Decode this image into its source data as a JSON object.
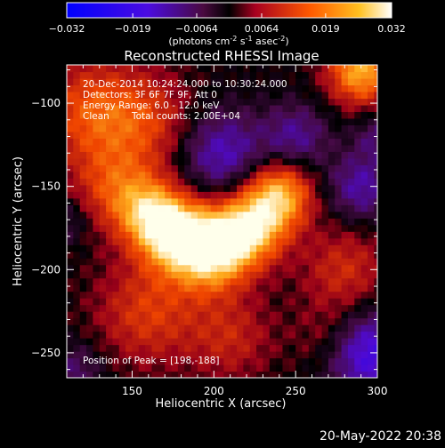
{
  "colorbar": {
    "ticks": [
      "-0.032",
      "-0.019",
      "-0.0064",
      "0.0064",
      "0.019",
      "0.032"
    ],
    "min": -0.032,
    "max": 0.032,
    "unit_parts": {
      "base": "(photons cm",
      "exp1": "-2",
      "mid1": " s",
      "exp2": "-1",
      "mid2": " asec",
      "exp3": "-2",
      "end": ")"
    }
  },
  "chart_data": {
    "type": "heatmap",
    "title": "Reconstructed RHESSI Image",
    "xlabel": "Heliocentric X (arcsec)",
    "ylabel": "Heliocentric Y (arcsec)",
    "xlim": [
      110,
      300
    ],
    "ylim": [
      -265,
      -77
    ],
    "xticks": [
      "150",
      "200",
      "250",
      "300"
    ],
    "yticks": [
      "-100",
      "-150",
      "-200",
      "-250"
    ],
    "peak": [
      198,
      -188
    ],
    "annotations": {
      "time_range": "20-Dec-2014 10:24:24.000 to 10:30:24.000",
      "detectors": "Detectors: 3F 6F 7F 9F, Att 0",
      "energy_range": "Energy Range: 6.0 - 12.0 keV",
      "clean": "Clean",
      "total_counts": "Total counts: 2.00E+04",
      "peak_position": "Position of Peak = [198,-188]"
    }
  },
  "footer": {
    "timestamp": "20-May-2022 20:38"
  }
}
